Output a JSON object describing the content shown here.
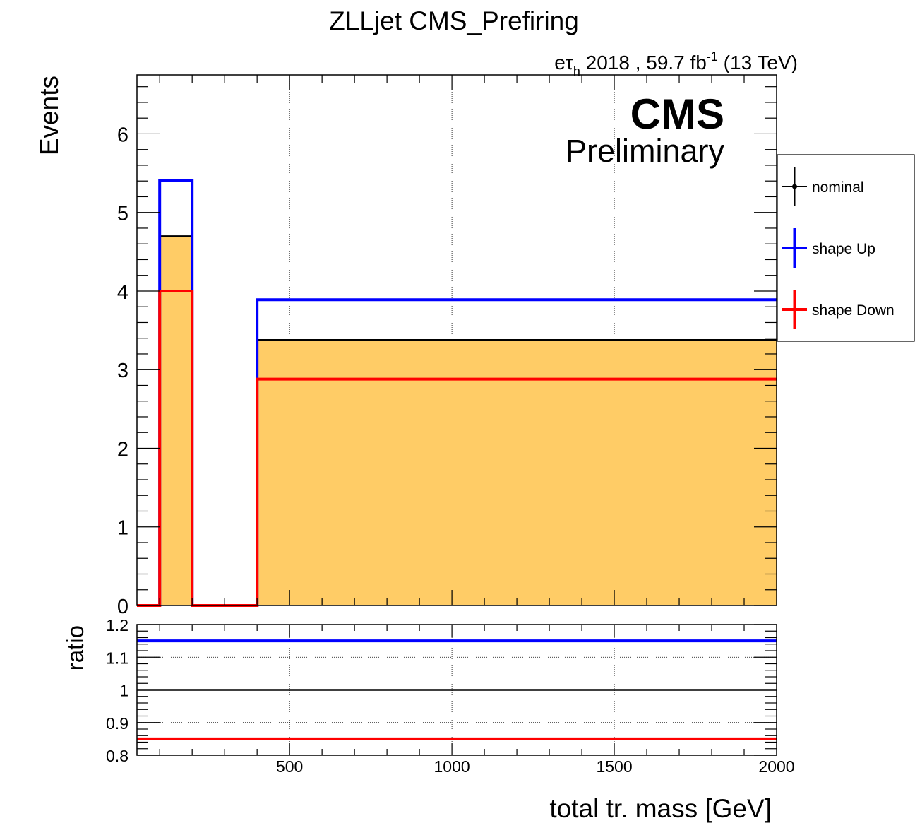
{
  "chart_data": [
    {
      "type": "step",
      "title": "ZLLjet CMS_Prefiring",
      "lumi_label": {
        "prefix": "e",
        "tau": "τ",
        "sub": "h",
        "rest": " 2018 , 59.7 fb",
        "sup": "-1",
        "energy": " (13 TeV)"
      },
      "cms_label": "CMS",
      "preliminary_label": "Preliminary",
      "ylabel": "Events",
      "xlim": [
        30,
        2000
      ],
      "ylim": [
        0,
        6.75
      ],
      "yticks": [
        "0",
        "1",
        "2",
        "3",
        "4",
        "5",
        "6"
      ],
      "grid_x": true,
      "bin_edges": [
        30,
        100,
        200,
        400,
        2000
      ],
      "series": [
        {
          "name": "nominal",
          "color": "#000000",
          "fill": "#ffcc66",
          "values": [
            0,
            4.7,
            0,
            3.38
          ]
        },
        {
          "name": "shape Up",
          "color": "#0000ff",
          "values": [
            0,
            5.41,
            0,
            3.89
          ]
        },
        {
          "name": "shape Down",
          "color": "#ff0000",
          "values": [
            0,
            4.0,
            0,
            2.88
          ]
        }
      ],
      "legend_position": "right"
    },
    {
      "type": "line",
      "ylabel": "ratio",
      "xlabel": "total tr. mass [GeV]",
      "xlim": [
        30,
        2000
      ],
      "ylim": [
        0.8,
        1.2
      ],
      "yticks": [
        "0.8",
        "0.9",
        "1",
        "1.1",
        "1.2"
      ],
      "xticks": [
        "500",
        "1000",
        "1500",
        "2000"
      ],
      "grid_y": true,
      "series": [
        {
          "name": "nominal",
          "color": "#000000",
          "value": 1.0
        },
        {
          "name": "shape Up",
          "color": "#0000ff",
          "value": 1.15
        },
        {
          "name": "shape Down",
          "color": "#ff0000",
          "value": 0.85
        }
      ]
    }
  ]
}
